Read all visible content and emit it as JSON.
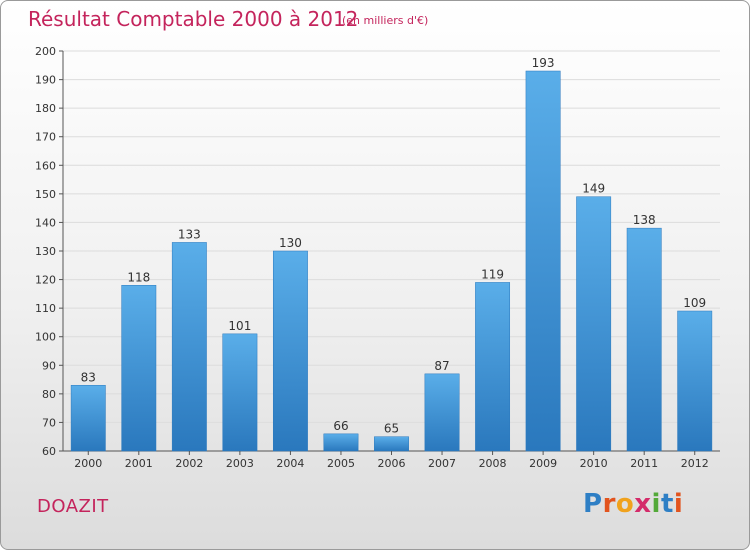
{
  "chart_data": {
    "type": "bar",
    "title": "Résultat Comptable 2000 à 2012",
    "subtitle": "(en milliers d'€)",
    "categories": [
      "2000",
      "2001",
      "2002",
      "2003",
      "2004",
      "2005",
      "2006",
      "2007",
      "2008",
      "2009",
      "2010",
      "2011",
      "2012"
    ],
    "values": [
      83,
      118,
      133,
      101,
      130,
      66,
      65,
      87,
      119,
      193,
      149,
      138,
      109
    ],
    "ylim": [
      60,
      200
    ],
    "yticks": [
      60,
      70,
      80,
      90,
      100,
      110,
      120,
      130,
      140,
      150,
      160,
      170,
      180,
      190,
      200
    ],
    "grid": true,
    "bar_color": "#3d8fd6",
    "title_color": "#c4245c"
  },
  "footer": {
    "town": "DOAZIT",
    "logo": "Proxiti"
  }
}
